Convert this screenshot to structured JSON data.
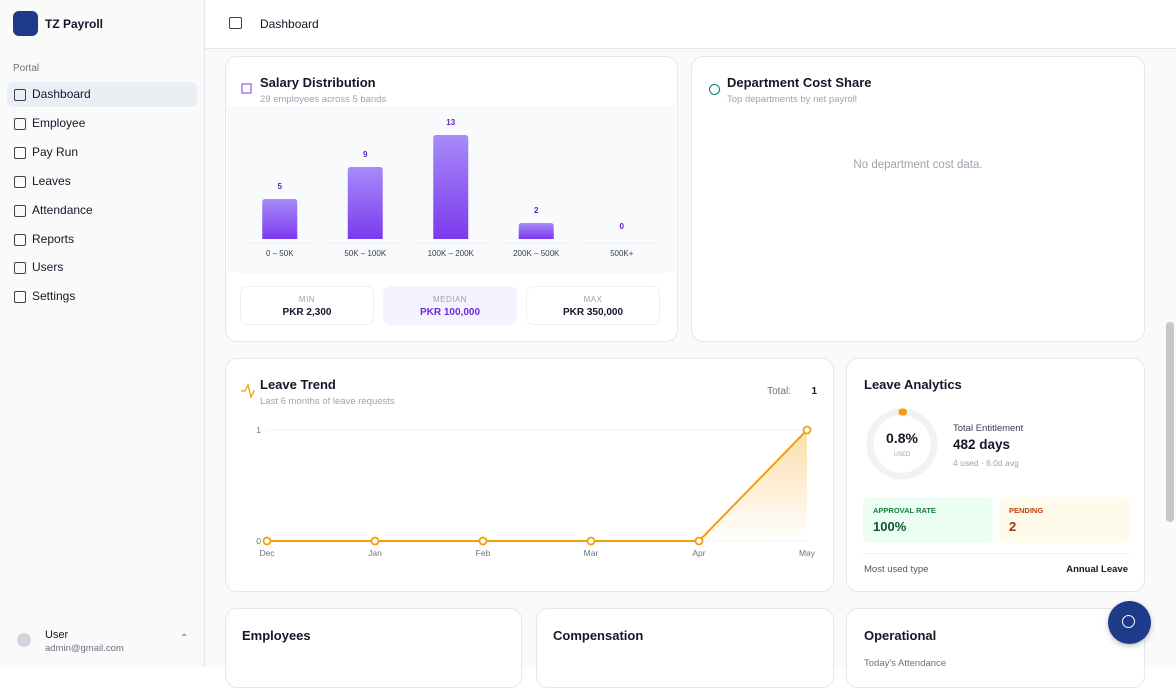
{
  "sidebar": {
    "app_name": "TZ Payroll",
    "section": "Portal",
    "nav": [
      "Dashboard",
      "Employee",
      "Pay Run",
      "Leaves",
      "Attendance",
      "Reports",
      "Users",
      "Settings"
    ],
    "user": {
      "name": "User",
      "email": "admin@gmail.com"
    }
  },
  "header": {
    "title": "Dashboard"
  },
  "chart_data": [
    {
      "type": "bar",
      "title": "Salary Distribution",
      "subtitle": "29 employees across 5 bands",
      "categories": [
        "0 – 50K",
        "50K – 100K",
        "100K – 200K",
        "200K – 500K",
        "500K+"
      ],
      "values": [
        5,
        9,
        13,
        2,
        0
      ],
      "color": "#8b5cf6"
    },
    {
      "type": "line",
      "title": "Leave Trend",
      "subtitle": "Last 6 months of leave requests",
      "total_label": "Total:",
      "total": 1,
      "categories": [
        "Dec",
        "Jan",
        "Feb",
        "Mar",
        "Apr",
        "May"
      ],
      "values": [
        0,
        0,
        0,
        0,
        0,
        1
      ],
      "ylim": [
        0,
        1
      ],
      "yticks": [
        0,
        1
      ],
      "color": "#f59e0b",
      "grid": true
    }
  ],
  "salary_stats": [
    {
      "label": "MIN",
      "value": "PKR 2,300"
    },
    {
      "label": "MEDIAN",
      "value": "PKR 100,000"
    },
    {
      "label": "MAX",
      "value": "PKR 350,000"
    }
  ],
  "department_cost": {
    "title": "Department Cost Share",
    "subtitle": "Top departments by net payroll",
    "empty": "No department cost data."
  },
  "leave_analytics": {
    "title": "Leave Analytics",
    "used": {
      "value": 0.8,
      "label": "0.8%"
    },
    "used_caption": "USED",
    "entitlement_label": "Total Entitlement",
    "entitlement": "482 days",
    "entitlement_note": "4 used · 6.0d avg",
    "approval_label": "APPROVAL RATE",
    "approval": "100%",
    "pending_label": "PENDING",
    "pending": 2,
    "most_used_label": "Most used type",
    "most_used": "Annual Leave"
  },
  "bottom_cards": {
    "employees": "Employees",
    "compensation": "Compensation",
    "operational": "Operational",
    "attendance_label": "Today's Attendance"
  }
}
